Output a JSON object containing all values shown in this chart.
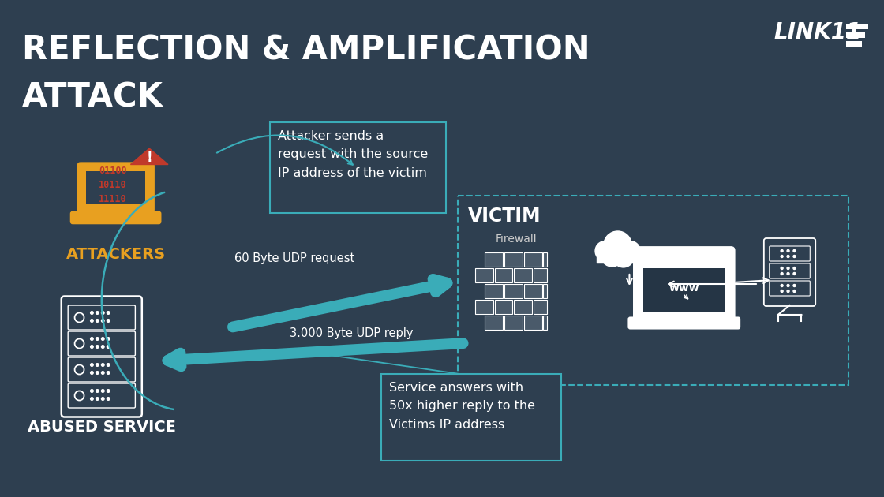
{
  "bg_color": "#2e3f50",
  "title_line1": "REFLECTION & AMPLIFICATION",
  "title_line2": "ATTACK",
  "title_color": "#ffffff",
  "title_fontsize": 30,
  "attackers_label": "ATTACKERS",
  "attackers_color": "#e8a020",
  "abused_label": "ABUSED SERVICE",
  "abused_color": "#ffffff",
  "victim_label": "VICTIM",
  "victim_color": "#ffffff",
  "firewall_label": "Firewall",
  "firewall_color": "#cccccc",
  "teal_color": "#3aacb8",
  "attacker_box_text": "Attacker sends a\nrequest with the source\nIP address of the victim",
  "service_box_text": "Service answers with\n50x higher reply to the\nVictims IP address",
  "udp_request_label": "60 Byte UDP request",
  "udp_reply_label": "3.000 Byte UDP reply",
  "binary_text": "01100\n10110\n11110",
  "binary_color": "#c0392b",
  "warning_color": "#c0392b",
  "link11_color": "#ffffff"
}
